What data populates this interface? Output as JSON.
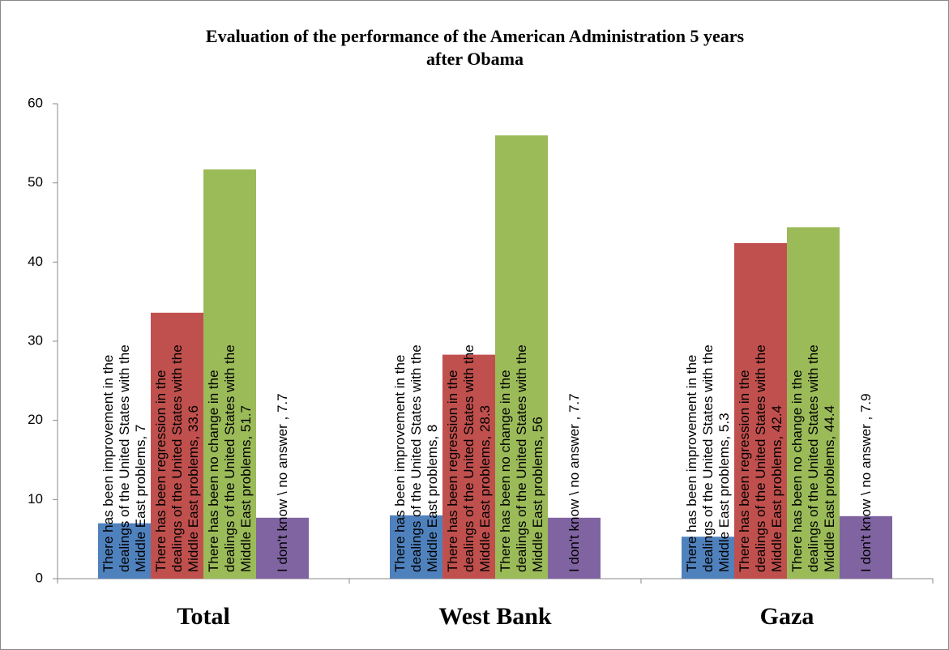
{
  "chart_data": {
    "type": "bar",
    "title": "Evaluation of the performance of the American Administration 5 years after Obama",
    "categories": [
      "Total",
      "West Bank",
      "Gaza"
    ],
    "series": [
      {
        "name": "There has been improvement in the dealings of the United States with the Middle East problems",
        "color": "#4f81bd",
        "values": [
          7,
          8,
          5.3
        ],
        "value_labels": [
          ", 7",
          ", 8",
          ", 5.3"
        ]
      },
      {
        "name": "There has been regression in the dealings of the United States with the Middle East problems",
        "color": "#c0504d",
        "values": [
          33.6,
          28.3,
          42.4
        ],
        "value_labels": [
          ", 33.6",
          ", 28.3",
          ", 42.4"
        ]
      },
      {
        "name": "There has been no change in the dealings of the United States with the Middle East problems",
        "color": "#9bbb59",
        "values": [
          51.7,
          56,
          44.4
        ],
        "value_labels": [
          ", 51.7",
          ", 56",
          ", 44.4"
        ]
      },
      {
        "name": "I don't know \\ no answer ",
        "color": "#8064a2",
        "values": [
          7.7,
          7.7,
          7.9
        ],
        "value_labels": [
          ", 7.7",
          ", 7.7",
          ", 7.9"
        ]
      }
    ],
    "ylim": [
      0,
      60
    ],
    "yticks": [
      0,
      10,
      20,
      30,
      40,
      50,
      60
    ],
    "grid": false
  }
}
